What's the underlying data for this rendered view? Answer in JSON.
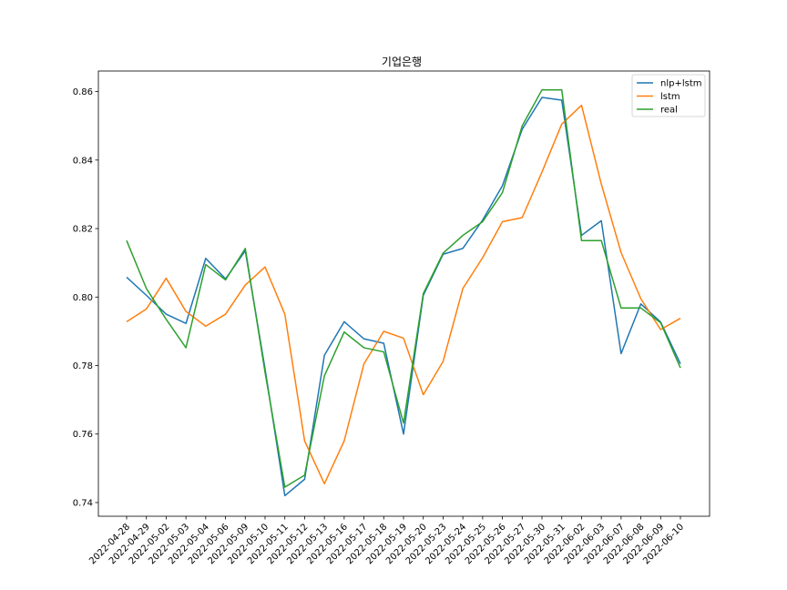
{
  "chart_data": {
    "type": "line",
    "title": "기업은행",
    "xlabel": "",
    "ylabel": "",
    "ylim": [
      0.736,
      0.866
    ],
    "yticks": [
      0.74,
      0.76,
      0.78,
      0.8,
      0.82,
      0.84,
      0.86
    ],
    "ytick_labels": [
      "0.74",
      "0.76",
      "0.78",
      "0.80",
      "0.82",
      "0.84",
      "0.86"
    ],
    "grid": false,
    "legend_position": "top-right",
    "categories": [
      "2022-04-28",
      "2022-04-29",
      "2022-05-02",
      "2022-05-03",
      "2022-05-04",
      "2022-05-06",
      "2022-05-09",
      "2022-05-10",
      "2022-05-11",
      "2022-05-12",
      "2022-05-13",
      "2022-05-16",
      "2022-05-17",
      "2022-05-18",
      "2022-05-19",
      "2022-05-20",
      "2022-05-23",
      "2022-05-24",
      "2022-05-25",
      "2022-05-26",
      "2022-05-27",
      "2022-05-30",
      "2022-05-31",
      "2022-06-02",
      "2022-06-03",
      "2022-06-07",
      "2022-06-08",
      "2022-06-09",
      "2022-06-10"
    ],
    "series": [
      {
        "name": "nlp+lstm",
        "color": "#1f77b4",
        "values": [
          0.8058,
          0.8005,
          0.795,
          0.7923,
          0.8113,
          0.8053,
          0.8135,
          0.779,
          0.742,
          0.7468,
          0.783,
          0.7928,
          0.7878,
          0.7865,
          0.76,
          0.8005,
          0.8125,
          0.8142,
          0.8225,
          0.8325,
          0.849,
          0.8583,
          0.8575,
          0.818,
          0.8223,
          0.7835,
          0.798,
          0.7927,
          0.7805
        ]
      },
      {
        "name": "lstm",
        "color": "#ff7f0e",
        "values": [
          0.7928,
          0.7965,
          0.8055,
          0.7958,
          0.7915,
          0.795,
          0.8035,
          0.8088,
          0.795,
          0.758,
          0.7455,
          0.758,
          0.7805,
          0.79,
          0.788,
          0.7715,
          0.7812,
          0.8025,
          0.8115,
          0.822,
          0.8232,
          0.8365,
          0.8505,
          0.856,
          0.833,
          0.813,
          0.7995,
          0.7905,
          0.7938
        ]
      },
      {
        "name": "real",
        "color": "#2ca02c",
        "values": [
          0.8165,
          0.8025,
          0.7935,
          0.7852,
          0.8095,
          0.805,
          0.8142,
          0.778,
          0.7445,
          0.748,
          0.777,
          0.7898,
          0.7852,
          0.784,
          0.7632,
          0.801,
          0.8128,
          0.818,
          0.822,
          0.8305,
          0.85,
          0.8605,
          0.8605,
          0.8165,
          0.8165,
          0.7968,
          0.7968,
          0.7925,
          0.7793
        ]
      }
    ]
  }
}
